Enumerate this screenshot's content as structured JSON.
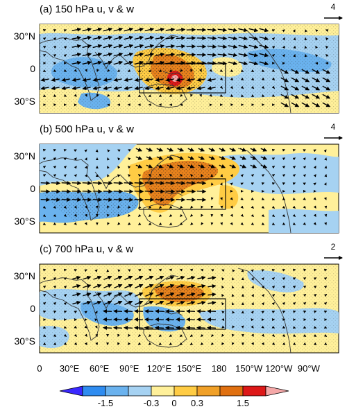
{
  "chart_data": {
    "type": "heatmap",
    "panels": [
      {
        "title": "(a) 150 hPa u, v & w",
        "ref_vector": "4"
      },
      {
        "title": "(b) 500 hPa u, v & w",
        "ref_vector": "4"
      },
      {
        "title": "(c) 700 hPa u, v & w",
        "ref_vector": "2"
      }
    ],
    "lon_ticks": [
      "0",
      "30°E",
      "60°E",
      "90°E",
      "120°E",
      "150°E",
      "180",
      "150°W",
      "120°W",
      "90°W"
    ],
    "lon_values": [
      0,
      30,
      60,
      90,
      120,
      150,
      180,
      210,
      240,
      270
    ],
    "lat_ticks": [
      "30°N",
      "0",
      "30°S"
    ],
    "lat_values": [
      30,
      0,
      -30
    ],
    "xlim": [
      0,
      300
    ],
    "ylim": [
      -45,
      45
    ],
    "box": {
      "lon": [
        100,
        180
      ],
      "lat": [
        -20,
        10
      ]
    },
    "colorbar": {
      "labels": [
        "-1.5",
        "-0.3",
        "0",
        "0.3",
        "1.5"
      ],
      "colors": [
        "#3a28ff",
        "#2f8cf0",
        "#6ab2ee",
        "#a6d2f2",
        "#fff09a",
        "#ffcc44",
        "#f0a028",
        "#e07010",
        "#dd1818",
        "#f5a8a8"
      ]
    },
    "colors": {
      "ocean": "#a6d2f2",
      "positive_light": "#fff09a",
      "positive": "#ffcc44",
      "positive_strong": "#e8821c",
      "negative": "#6ab2ee",
      "negative_strong": "#2f8cf0",
      "extreme": "#dd1818"
    }
  }
}
